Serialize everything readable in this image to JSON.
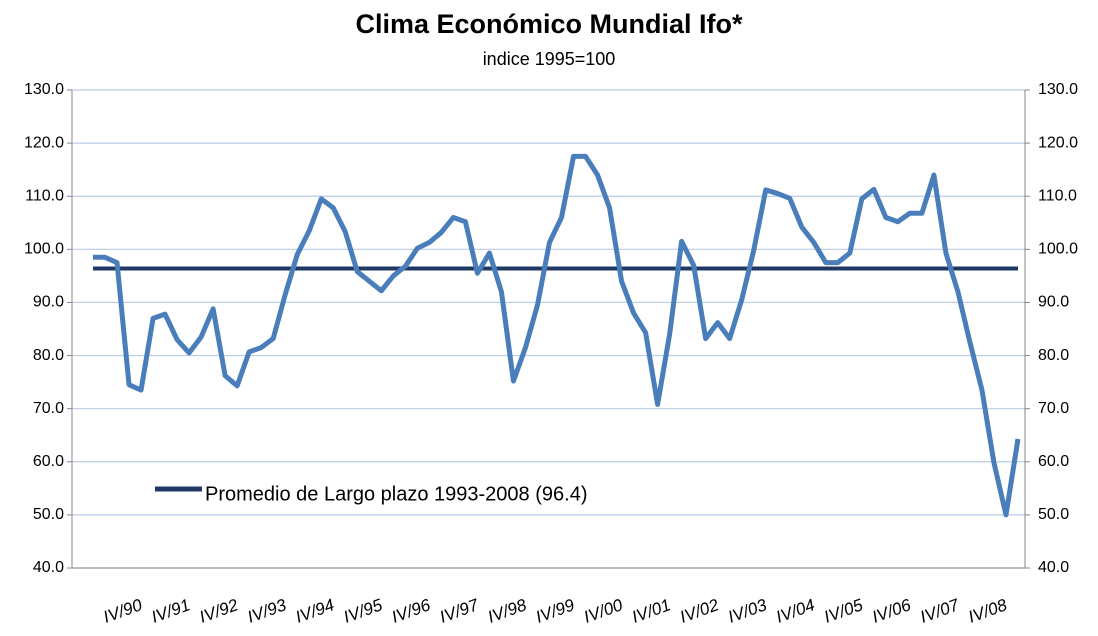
{
  "chart_data": {
    "type": "line",
    "title": "Clima Económico Mundial Ifo*",
    "subtitle": "indice 1995=100",
    "categories": [
      null,
      null,
      null,
      "IV/90",
      null,
      null,
      null,
      "IV/91",
      null,
      null,
      null,
      "IV/92",
      null,
      null,
      null,
      "IV/93",
      null,
      null,
      null,
      "IV/94",
      null,
      null,
      null,
      "IV/95",
      null,
      null,
      null,
      "IV/96",
      null,
      null,
      null,
      "IV/97",
      null,
      null,
      null,
      "IV/98",
      null,
      null,
      null,
      "IV/99",
      null,
      null,
      null,
      "IV/00",
      null,
      null,
      null,
      "IV/01",
      null,
      null,
      null,
      "IV/02",
      null,
      null,
      null,
      "IV/03",
      null,
      null,
      null,
      "IV/04",
      null,
      null,
      null,
      "IV/05",
      null,
      null,
      null,
      "IV/06",
      null,
      null,
      null,
      "IV/07",
      null,
      null,
      null,
      "IV/08",
      null,
      null
    ],
    "series": [
      {
        "color": "#4a7ebb",
        "values": [
          98.5,
          98.5,
          97.5,
          74.5,
          73.5,
          87,
          87.8,
          83,
          80.5,
          83.5,
          88.8,
          76.2,
          74.3,
          80.7,
          81.5,
          83.2,
          91.5,
          99,
          103.5,
          109.5,
          107.8,
          103.3,
          95.8,
          94,
          92.2,
          95,
          96.8,
          100.2,
          101.3,
          103.2,
          106,
          105.2,
          95.5,
          99.3,
          92,
          75.2,
          81.5,
          89.5,
          101.3,
          106,
          117.5,
          117.5,
          114,
          107.8,
          94,
          88,
          84.3,
          70.8,
          84,
          101.5,
          97,
          83.2,
          86.2,
          83.2,
          90.5,
          99.8,
          111.2,
          110.5,
          109.6,
          104.2,
          101.3,
          97.5,
          97.5,
          99.3,
          109.5,
          111.3,
          106,
          105.2,
          106.8,
          106.8,
          114,
          99.3,
          92,
          82.5,
          73.5,
          59.8,
          50,
          64.3
        ]
      }
    ],
    "reference_line": {
      "name": "Promedio de Largo plazo 1993-2008 (96.4)",
      "value": 96.4,
      "color": "#1f3864"
    },
    "ylim": [
      40,
      130
    ],
    "yticks": [
      {
        "value": 40,
        "label": "40.0"
      },
      {
        "value": 50,
        "label": "50.0"
      },
      {
        "value": 60,
        "label": "60.0"
      },
      {
        "value": 70,
        "label": "70.0"
      },
      {
        "value": 80,
        "label": "80.0"
      },
      {
        "value": 90,
        "label": "90.0"
      },
      {
        "value": 100,
        "label": "100.0"
      },
      {
        "value": 110,
        "label": "110.0"
      },
      {
        "value": 120,
        "label": "120.0"
      },
      {
        "value": 130,
        "label": "130.0"
      }
    ],
    "y2lim": [
      40,
      130
    ],
    "y2ticks": [
      {
        "value": 40,
        "label": "40.0"
      },
      {
        "value": 50,
        "label": "50.0"
      },
      {
        "value": 60,
        "label": "60.0"
      },
      {
        "value": 70,
        "label": "70.0"
      },
      {
        "value": 80,
        "label": "80.0"
      },
      {
        "value": 90,
        "label": "90.0"
      },
      {
        "value": 100,
        "label": "100.0"
      },
      {
        "value": 110,
        "label": "110.0"
      },
      {
        "value": 120,
        "label": "120.0"
      },
      {
        "value": 130,
        "label": "130.0"
      }
    ],
    "grid": true
  }
}
